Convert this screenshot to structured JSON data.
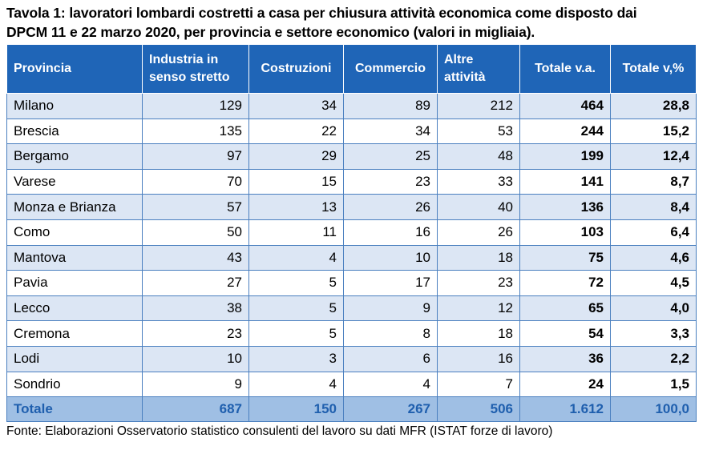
{
  "title_line1": "Tavola 1: lavoratori lombardi costretti a casa per chiusura attività economica come disposto dai",
  "title_line2": "DPCM 11 e 22 marzo 2020, per provincia e settore economico (valori in migliaia).",
  "table": {
    "headers": {
      "provincia": "Provincia",
      "industria_line1": "Industria in",
      "industria_line2": "senso stretto",
      "costruzioni": "Costruzioni",
      "commercio": "Commercio",
      "altre_line1": "Altre",
      "altre_line2": "attività",
      "totale_va": "Totale v.a.",
      "totale_vp": "Totale v,%"
    },
    "rows": [
      {
        "provincia": "Milano",
        "industria": "129",
        "costruzioni": "34",
        "commercio": "89",
        "altre": "212",
        "totale_va": "464",
        "totale_vp": "28,8"
      },
      {
        "provincia": "Brescia",
        "industria": "135",
        "costruzioni": "22",
        "commercio": "34",
        "altre": "53",
        "totale_va": "244",
        "totale_vp": "15,2"
      },
      {
        "provincia": "Bergamo",
        "industria": "97",
        "costruzioni": "29",
        "commercio": "25",
        "altre": "48",
        "totale_va": "199",
        "totale_vp": "12,4"
      },
      {
        "provincia": "Varese",
        "industria": "70",
        "costruzioni": "15",
        "commercio": "23",
        "altre": "33",
        "totale_va": "141",
        "totale_vp": "8,7"
      },
      {
        "provincia": "Monza e Brianza",
        "industria": "57",
        "costruzioni": "13",
        "commercio": "26",
        "altre": "40",
        "totale_va": "136",
        "totale_vp": "8,4"
      },
      {
        "provincia": "Como",
        "industria": "50",
        "costruzioni": "11",
        "commercio": "16",
        "altre": "26",
        "totale_va": "103",
        "totale_vp": "6,4"
      },
      {
        "provincia": "Mantova",
        "industria": "43",
        "costruzioni": "4",
        "commercio": "10",
        "altre": "18",
        "totale_va": "75",
        "totale_vp": "4,6"
      },
      {
        "provincia": "Pavia",
        "industria": "27",
        "costruzioni": "5",
        "commercio": "17",
        "altre": "23",
        "totale_va": "72",
        "totale_vp": "4,5"
      },
      {
        "provincia": "Lecco",
        "industria": "38",
        "costruzioni": "5",
        "commercio": "9",
        "altre": "12",
        "totale_va": "65",
        "totale_vp": "4,0"
      },
      {
        "provincia": "Cremona",
        "industria": "23",
        "costruzioni": "5",
        "commercio": "8",
        "altre": "18",
        "totale_va": "54",
        "totale_vp": "3,3"
      },
      {
        "provincia": "Lodi",
        "industria": "10",
        "costruzioni": "3",
        "commercio": "6",
        "altre": "16",
        "totale_va": "36",
        "totale_vp": "2,2"
      },
      {
        "provincia": "Sondrio",
        "industria": "9",
        "costruzioni": "4",
        "commercio": "4",
        "altre": "7",
        "totale_va": "24",
        "totale_vp": "1,5"
      }
    ],
    "total": {
      "provincia": "Totale",
      "industria": "687",
      "costruzioni": "150",
      "commercio": "267",
      "altre": "506",
      "totale_va": "1.612",
      "totale_vp": "100,0"
    }
  },
  "source": "Fonte: Elaborazioni Osservatorio statistico consulenti del lavoro su dati MFR (ISTAT forze di lavoro)",
  "colors": {
    "header_bg": "#1f65b7",
    "band_bg": "#dce6f4",
    "total_bg": "#9fbfe4",
    "total_text": "#1f5fae"
  }
}
